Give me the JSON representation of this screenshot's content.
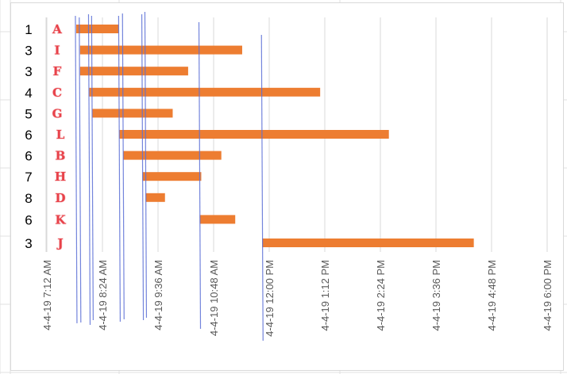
{
  "chart_data": {
    "type": "bar",
    "orientation": "horizontal-gantt",
    "title": "",
    "xlabel": "",
    "ylabel": "",
    "x_axis": {
      "min": "4-4-19 7:12 AM",
      "max": "4-4-19 6:00 PM",
      "tick_labels": [
        "4-4-19 7:12 AM",
        "4-4-19 8:24 AM",
        "4-4-19 9:36 AM",
        "4-4-19 10:48 AM",
        "4-4-19 12:00 PM",
        "4-4-19 1:12 PM",
        "4-4-19 2:24 PM",
        "4-4-19 3:36 PM",
        "4-4-19 4:48 PM",
        "4-4-19 6:00 PM"
      ],
      "tick_minutes": [
        432,
        504,
        576,
        648,
        720,
        792,
        864,
        936,
        1008,
        1080
      ],
      "grid": true
    },
    "rows": [
      {
        "num": "1",
        "label": "A",
        "start_min": 470,
        "end_min": 525
      },
      {
        "num": "3",
        "label": "I",
        "start_min": 475,
        "end_min": 685
      },
      {
        "num": "3",
        "label": "F",
        "start_min": 475,
        "end_min": 615
      },
      {
        "num": "4",
        "label": "C",
        "start_min": 487,
        "end_min": 786
      },
      {
        "num": "5",
        "label": "G",
        "start_min": 491,
        "end_min": 595
      },
      {
        "num": "6",
        "label": "L",
        "start_min": 526,
        "end_min": 875
      },
      {
        "num": "6",
        "label": "B",
        "start_min": 531,
        "end_min": 658
      },
      {
        "num": "7",
        "label": "H",
        "start_min": 556,
        "end_min": 632
      },
      {
        "num": "8",
        "label": "D",
        "start_min": 560,
        "end_min": 585
      },
      {
        "num": "6",
        "label": "K",
        "start_min": 630,
        "end_min": 676
      },
      {
        "num": "3",
        "label": "J",
        "start_min": 711,
        "end_min": 985
      }
    ],
    "annotation_lines_min": [
      470,
      475,
      487,
      491,
      526,
      531,
      556,
      560,
      630,
      711
    ],
    "colors": {
      "bar": "#ed7d31",
      "label": "#e8424a",
      "annotation": "#5b6fd6",
      "grid": "#d9d9d9",
      "axis_text": "#595959"
    }
  }
}
